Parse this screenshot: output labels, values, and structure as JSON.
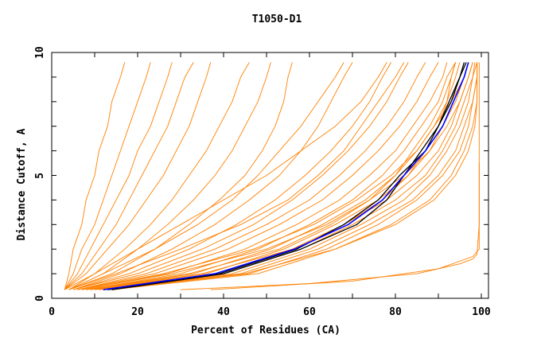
{
  "chart_data": {
    "type": "line",
    "title": "T1050-D1",
    "xlabel": "Percent of Residues (CA)",
    "ylabel": "Distance Cutoff, A",
    "xlim": [
      0,
      100
    ],
    "ylim": [
      0,
      10
    ],
    "xticks": [
      "0",
      "20",
      "40",
      "60",
      "80",
      "100"
    ],
    "yticks": [
      "0",
      "5",
      "10"
    ],
    "grid": false,
    "legend": "none",
    "colors": {
      "models": "#ff8000",
      "highlight": "#0000ff",
      "reference": "#000000"
    },
    "y_levels": [
      0.35,
      1,
      2,
      3,
      4,
      5,
      6,
      7,
      8,
      9,
      9.6
    ],
    "model_series_x": [
      [
        3,
        4,
        5,
        7,
        8,
        10,
        11,
        13,
        14,
        16,
        17
      ],
      [
        3,
        5,
        7,
        10,
        12,
        14,
        16,
        18,
        20,
        22,
        23
      ],
      [
        3,
        6,
        9,
        12,
        15,
        18,
        20,
        23,
        25,
        27,
        28
      ],
      [
        3,
        7,
        11,
        15,
        18,
        21,
        24,
        27,
        29,
        31,
        33
      ],
      [
        3,
        8,
        13,
        18,
        22,
        26,
        29,
        32,
        34,
        36,
        37
      ],
      [
        4,
        10,
        17,
        23,
        28,
        32,
        36,
        39,
        42,
        44,
        46
      ],
      [
        4,
        12,
        20,
        27,
        33,
        38,
        42,
        45,
        48,
        50,
        51
      ],
      [
        4,
        14,
        24,
        32,
        39,
        45,
        49,
        52,
        54,
        55,
        56
      ],
      [
        5,
        16,
        28,
        38,
        46,
        53,
        58,
        62,
        65,
        68,
        70
      ],
      [
        5,
        18,
        32,
        43,
        52,
        59,
        65,
        70,
        74,
        77,
        79
      ],
      [
        5,
        20,
        35,
        47,
        56,
        63,
        69,
        74,
        78,
        81,
        83
      ],
      [
        6,
        22,
        38,
        50,
        60,
        67,
        73,
        78,
        82,
        85,
        87
      ],
      [
        6,
        24,
        41,
        53,
        63,
        70,
        76,
        81,
        85,
        88,
        90
      ],
      [
        7,
        27,
        45,
        57,
        67,
        74,
        80,
        84,
        88,
        91,
        92
      ],
      [
        8,
        30,
        48,
        60,
        70,
        77,
        82,
        86,
        90,
        92,
        94
      ],
      [
        9,
        33,
        51,
        63,
        73,
        80,
        85,
        89,
        92,
        94,
        95
      ],
      [
        10,
        36,
        54,
        66,
        76,
        83,
        88,
        91,
        94,
        96,
        97
      ],
      [
        10,
        38,
        56,
        68,
        78,
        85,
        90,
        93,
        95,
        97,
        98
      ],
      [
        11,
        40,
        58,
        70,
        80,
        87,
        91,
        94,
        96,
        98,
        98.5
      ],
      [
        12,
        42,
        60,
        72,
        82,
        88,
        92,
        95,
        97,
        98,
        99
      ],
      [
        12,
        44,
        62,
        74,
        84,
        90,
        94,
        96,
        98,
        99,
        99
      ],
      [
        13,
        46,
        64,
        76,
        85,
        91,
        95,
        97,
        98,
        99,
        99
      ],
      [
        14,
        48,
        66,
        79,
        88,
        93,
        96,
        98,
        99,
        99,
        99
      ],
      [
        9,
        35,
        56,
        68,
        77,
        83,
        87,
        90,
        92,
        93,
        94
      ],
      [
        7,
        28,
        50,
        64,
        74,
        82,
        88,
        92,
        95,
        97,
        98
      ],
      [
        6,
        26,
        47,
        61,
        71,
        79,
        85,
        89,
        93,
        96,
        97
      ],
      [
        8,
        32,
        53,
        65,
        74,
        80,
        84,
        88,
        91,
        93,
        94
      ],
      [
        11,
        45,
        66,
        80,
        89,
        94,
        97,
        98.5,
        99,
        99,
        99
      ],
      [
        4,
        15,
        30,
        44,
        55,
        62,
        68,
        72,
        76,
        80,
        82
      ],
      [
        3,
        10,
        20,
        30,
        40,
        50,
        58,
        66,
        72,
        76,
        78
      ],
      [
        4,
        12,
        24,
        34,
        42,
        48,
        53,
        58,
        62,
        66,
        68
      ]
    ],
    "model_series_points": [
      [
        [
          30,
          0.35
        ],
        [
          60,
          0.6
        ],
        [
          85,
          1.0
        ],
        [
          95,
          1.4
        ],
        [
          98,
          1.6
        ],
        [
          99,
          1.8
        ],
        [
          99.5,
          3
        ],
        [
          99.5,
          5.5
        ]
      ],
      [
        [
          37,
          0.35
        ],
        [
          70,
          0.7
        ],
        [
          90,
          1.2
        ],
        [
          98,
          1.7
        ],
        [
          99.5,
          2
        ],
        [
          99.5,
          9.6
        ]
      ]
    ],
    "highlight_series_x": [
      12,
      38,
      56.5,
      69,
      77,
      82,
      87,
      91,
      93.5,
      96,
      97
    ],
    "reference_series_x": [
      [
        13,
        39,
        57,
        68,
        76,
        81,
        87,
        90,
        93,
        95,
        96.5
      ],
      [
        14,
        40,
        58,
        71,
        78,
        82,
        86,
        90,
        92.5,
        95,
        96
      ]
    ]
  }
}
